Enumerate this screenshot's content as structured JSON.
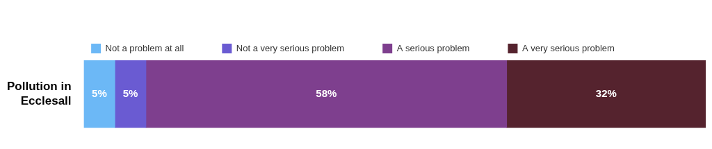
{
  "chart_data": {
    "type": "bar",
    "orientation": "horizontal",
    "stacked": true,
    "categories": [
      "Pollution in Ecclesall"
    ],
    "series": [
      {
        "name": "Not a problem at all",
        "color": "#6cb8f6",
        "values": [
          5
        ],
        "value_labels": [
          "5%"
        ]
      },
      {
        "name": "Not a very serious problem",
        "color": "#6a5bd2",
        "values": [
          5
        ],
        "value_labels": [
          "5%"
        ]
      },
      {
        "name": "A serious problem",
        "color": "#7e3f8e",
        "values": [
          58
        ],
        "value_labels": [
          "58%"
        ]
      },
      {
        "name": "A very serious problem",
        "color": "#55232e",
        "values": [
          32
        ],
        "value_labels": [
          "32%"
        ]
      }
    ],
    "xlim": [
      0,
      100
    ],
    "legend": "top",
    "grid": false,
    "data_labels": true,
    "tick_labels": "y"
  }
}
